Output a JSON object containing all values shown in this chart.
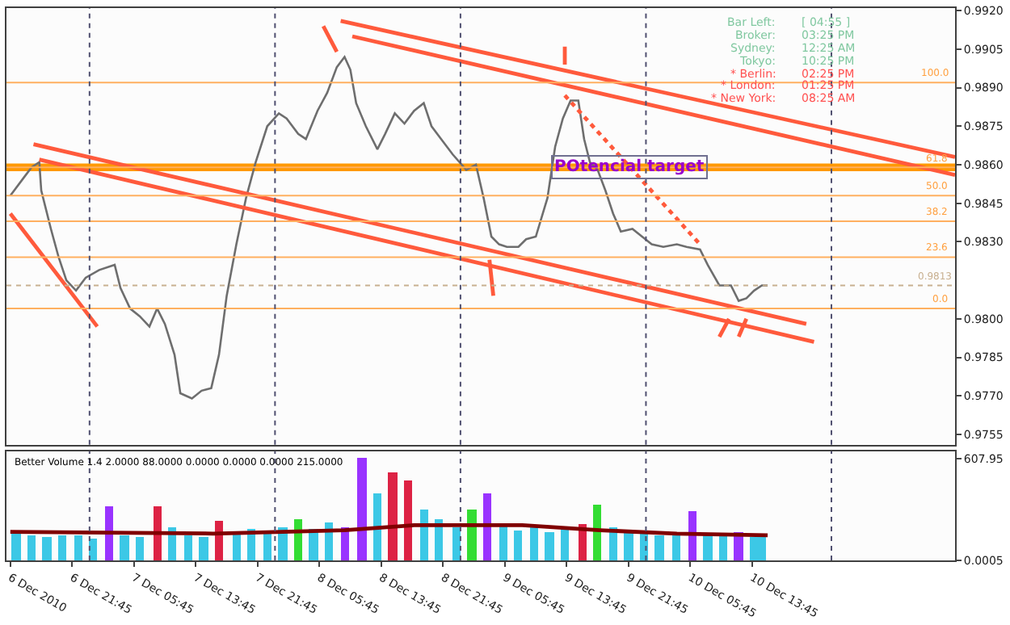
{
  "chart_data": [
    {
      "type": "line",
      "grid": false,
      "tick_labels": "y",
      "xlim": [
        "2010-12-06T13:15",
        "2010-12-11T16:00"
      ],
      "ylim": [
        0.9751,
        0.9921
      ],
      "yticks": [
        {
          "value": 0.992,
          "label": "0.9920"
        },
        0.9905,
        {
          "value": 0.989,
          "label": "0.9890"
        },
        0.9875,
        {
          "value": 0.986,
          "label": "0.9860"
        },
        0.9845,
        {
          "value": 0.983,
          "label": "0.9830"
        },
        {
          "value": 0.98,
          "label": "0.9800"
        },
        0.9785,
        {
          "value": 0.977,
          "label": "0.9770"
        },
        0.9755
      ],
      "series": [
        {
          "color": "#6e6e6e",
          "x": [
            "2010-12-06T13:45",
            "2010-12-06T15:30",
            "2010-12-06T16:30",
            "2010-12-06T17:30",
            "2010-12-06T17:45",
            "2010-12-06T19:00",
            "2010-12-06T20:00",
            "2010-12-06T21:00",
            "2010-12-06T22:15",
            "2010-12-06T23:30",
            "2010-12-07T01:15",
            "2010-12-07T03:15",
            "2010-12-07T04:00",
            "2010-12-07T05:15",
            "2010-12-07T06:30",
            "2010-12-07T07:45",
            "2010-12-07T08:45",
            "2010-12-07T09:45",
            "2010-12-07T11:00",
            "2010-12-07T11:45",
            "2010-12-07T13:15",
            "2010-12-07T14:30",
            "2010-12-07T15:45",
            "2010-12-07T16:45",
            "2010-12-07T17:45",
            "2010-12-07T19:00",
            "2010-12-07T20:15",
            "2010-12-07T21:30",
            "2010-12-07T23:00",
            "2010-12-08T00:30",
            "2010-12-08T01:30",
            "2010-12-08T03:00",
            "2010-12-08T04:00",
            "2010-12-08T05:30",
            "2010-12-08T06:45",
            "2010-12-08T08:00",
            "2010-12-08T09:00",
            "2010-12-08T09:45",
            "2010-12-08T10:30",
            "2010-12-08T11:45",
            "2010-12-08T13:15",
            "2010-12-08T14:15",
            "2010-12-08T15:30",
            "2010-12-08T16:45",
            "2010-12-08T18:00",
            "2010-12-08T19:15",
            "2010-12-08T20:15",
            "2010-12-08T21:30",
            "2010-12-08T23:00",
            "2010-12-09T00:45",
            "2010-12-09T02:00",
            "2010-12-09T03:00",
            "2010-12-09T04:00",
            "2010-12-09T05:00",
            "2010-12-09T06:00",
            "2010-12-09T07:30",
            "2010-12-09T08:30",
            "2010-12-09T09:45",
            "2010-12-09T11:15",
            "2010-12-09T12:15",
            "2010-12-09T13:15",
            "2010-12-09T14:15",
            "2010-12-09T15:15",
            "2010-12-09T16:00",
            "2010-12-09T16:45",
            "2010-12-09T17:45",
            "2010-12-09T18:45",
            "2010-12-09T19:45",
            "2010-12-09T20:45",
            "2010-12-09T22:15",
            "2010-12-09T23:30",
            "2010-12-10T00:45",
            "2010-12-10T02:15",
            "2010-12-10T04:00",
            "2010-12-10T05:15",
            "2010-12-10T07:00",
            "2010-12-10T08:00",
            "2010-12-10T09:30",
            "2010-12-10T11:00",
            "2010-12-10T12:00",
            "2010-12-10T13:00",
            "2010-12-10T14:00",
            "2010-12-10T15:00",
            "2010-12-10T15:45"
          ],
          "values": [
            0.9848,
            0.9855,
            0.9859,
            0.9861,
            0.985,
            0.9835,
            0.9824,
            0.9815,
            0.9811,
            0.9816,
            0.9819,
            0.9821,
            0.9812,
            0.9804,
            0.9801,
            0.9797,
            0.9804,
            0.9798,
            0.9786,
            0.9771,
            0.9769,
            0.9772,
            0.9773,
            0.9786,
            0.9809,
            0.9829,
            0.9847,
            0.9861,
            0.9875,
            0.988,
            0.9878,
            0.9872,
            0.987,
            0.9881,
            0.9888,
            0.9898,
            0.9902,
            0.9897,
            0.9884,
            0.9875,
            0.9866,
            0.9872,
            0.988,
            0.9876,
            0.9881,
            0.9884,
            0.9875,
            0.987,
            0.9864,
            0.9858,
            0.986,
            0.9847,
            0.9832,
            0.9829,
            0.9828,
            0.9828,
            0.9831,
            0.9832,
            0.9847,
            0.9867,
            0.9878,
            0.9885,
            0.9885,
            0.987,
            0.9861,
            0.9858,
            0.985,
            0.9841,
            0.9834,
            0.9835,
            0.9832,
            0.9829,
            0.9828,
            0.9829,
            0.9828,
            0.9827,
            0.9821,
            0.9813,
            0.9813,
            0.9807,
            0.9808,
            0.9811,
            0.9813,
            0.9813
          ]
        },
        {
          "color": "#ff5a3c",
          "x": [
            "2010-12-08T08:30",
            "2010-12-11T16:00"
          ],
          "values": [
            0.9916,
            0.9863
          ]
        },
        {
          "color": "#ff5a3c",
          "x": [
            "2010-12-08T10:00",
            "2010-12-11T16:00"
          ],
          "values": [
            0.991,
            0.9856
          ]
        },
        {
          "color": "#ff5a3c",
          "x": [
            "2010-12-06T16:45",
            "2010-12-10T20:45"
          ],
          "values": [
            0.9868,
            0.9798
          ]
        },
        {
          "color": "#ff5a3c",
          "x": [
            "2010-12-06T17:30",
            "2010-12-10T21:45"
          ],
          "values": [
            0.9862,
            0.9791
          ]
        },
        {
          "color": "#ff5a3c",
          "x": [
            "2010-12-06T13:45",
            "2010-12-07T01:00"
          ],
          "values": [
            0.9841,
            0.9797
          ]
        },
        {
          "color": "#ff5a3c",
          "line_style": "dotted",
          "x": [
            "2010-12-09T13:30",
            "2010-12-10T07:00"
          ],
          "values": [
            0.9887,
            0.9829
          ]
        },
        {
          "color": "#ff5a3c",
          "x": [
            "2010-12-08T06:15",
            "2010-12-08T08:00"
          ],
          "values": [
            0.9914,
            0.9904
          ]
        },
        {
          "color": "#ff5a3c",
          "x": [
            "2010-12-09T13:30",
            "2010-12-09T13:30"
          ],
          "values": [
            0.9906,
            0.9899
          ]
        },
        {
          "color": "#ff5a3c",
          "x": [
            "2010-12-09T03:45",
            "2010-12-09T04:15"
          ],
          "values": [
            0.9823,
            0.9809
          ]
        },
        {
          "color": "#ff5a3c",
          "x": [
            "2010-12-10T09:30",
            "2010-12-10T10:45"
          ],
          "values": [
            0.9793,
            0.98
          ]
        },
        {
          "color": "#ff5a3c",
          "x": [
            "2010-12-10T12:00",
            "2010-12-10T13:00"
          ],
          "values": [
            0.9793,
            0.98
          ]
        }
      ],
      "ref_lines": [
        {
          "axis": "y",
          "value": 0.9892,
          "color": "#ffb060"
        },
        {
          "axis": "y",
          "value": 0.9859,
          "color": "#ffb060"
        },
        {
          "axis": "y",
          "value": 0.9848,
          "color": "#ffb060"
        },
        {
          "axis": "y",
          "value": 0.9838,
          "color": "#ffb060"
        },
        {
          "axis": "y",
          "value": 0.9824,
          "color": "#ffb060"
        },
        {
          "axis": "y",
          "value": 0.9804,
          "color": "#ffb060"
        },
        {
          "axis": "y",
          "value": 0.9813,
          "label": "0.9813",
          "color": "#c8b090",
          "line_style": "dotted"
        },
        {
          "axis": "x",
          "value": "2010-12-07",
          "color": "#505070",
          "line_style": "dotted"
        },
        {
          "axis": "x",
          "value": "2010-12-08",
          "color": "#505070",
          "line_style": "dotted"
        },
        {
          "axis": "x",
          "value": "2010-12-09",
          "color": "#505070",
          "line_style": "dotted"
        },
        {
          "axis": "x",
          "value": "2010-12-10",
          "color": "#505070",
          "line_style": "dotted"
        },
        {
          "axis": "x",
          "value": "2010-12-11",
          "color": "#505070",
          "line_style": "dotted"
        }
      ],
      "bands": [
        {
          "axis": "y",
          "from": 0.98575,
          "to": 0.98605,
          "label": "POtencial target",
          "color": "#ff9900"
        }
      ],
      "annotations": [
        "Bar Left:",
        "[ 04:55 ]",
        "Broker:",
        "03:25 PM",
        "Sydney:",
        "12:25 AM",
        "Tokyo:",
        "10:25 PM",
        "* Berlin:",
        "02:25 PM",
        "* London:",
        "01:25 PM",
        "* New York:",
        "08:25 AM",
        {
          "text": "100.0",
          "x": "2010-12-11T15:30",
          "y": 0.9892
        },
        {
          "text": "61.8",
          "x": "2010-12-11T15:30",
          "y": 0.9859
        },
        {
          "text": "50.0",
          "x": "2010-12-11T15:30",
          "y": 0.9848
        },
        {
          "text": "38.2",
          "x": "2010-12-11T15:30",
          "y": 0.9838
        },
        {
          "text": "23.6",
          "x": "2010-12-11T15:30",
          "y": 0.9824
        },
        {
          "text": "0.0",
          "x": "2010-12-11T15:30",
          "y": 0.9804
        }
      ]
    },
    {
      "type": "bar",
      "title": "Better Volume 1.4 2.0000 88.0000 0.0000 0.0000 0.0000 215.0000",
      "grid": false,
      "xlim": [
        "2010-12-06T13:15",
        "2010-12-11T16:00"
      ],
      "ylim": [
        0,
        651
      ],
      "yticks": [
        0.0005,
        607.95
      ],
      "xticks": [
        {
          "value": "2010-12-06T13:45",
          "label": "6 Dec 2010"
        },
        {
          "value": "2010-12-06T21:45",
          "label": "6 Dec 21:45"
        },
        {
          "value": "2010-12-07T05:45",
          "label": "7 Dec 05:45"
        },
        {
          "value": "2010-12-07T13:45",
          "label": "7 Dec 13:45"
        },
        {
          "value": "2010-12-07T21:45",
          "label": "7 Dec 21:45"
        },
        {
          "value": "2010-12-08T05:45",
          "label": "8 Dec 05:45"
        },
        {
          "value": "2010-12-08T13:45",
          "label": "8 Dec 13:45"
        },
        {
          "value": "2010-12-08T21:45",
          "label": "8 Dec 21:45"
        },
        {
          "value": "2010-12-09T05:45",
          "label": "9 Dec 05:45"
        },
        {
          "value": "2010-12-09T13:45",
          "label": "9 Dec 13:45"
        },
        {
          "value": "2010-12-09T21:45",
          "label": "9 Dec 21:45"
        },
        {
          "value": "2010-12-10T05:45",
          "label": "10 Dec 05:45"
        },
        {
          "value": "2010-12-10T13:45",
          "label": "10 Dec 13:45"
        }
      ],
      "series": [
        {
          "x": [
            "2010-12-06T14:30",
            "2010-12-06T16:30",
            "2010-12-06T18:30",
            "2010-12-06T20:30",
            "2010-12-06T22:30",
            "2010-12-07T00:30",
            "2010-12-07T02:30",
            "2010-12-07T04:30",
            "2010-12-07T06:30",
            "2010-12-07T08:45",
            "2010-12-07T10:45",
            "2010-12-07T12:45",
            "2010-12-07T14:45",
            "2010-12-07T16:45",
            "2010-12-07T19:00",
            "2010-12-07T21:00",
            "2010-12-07T23:00",
            "2010-12-08T01:00",
            "2010-12-08T03:00",
            "2010-12-08T05:00",
            "2010-12-08T07:00",
            "2010-12-08T09:00",
            "2010-12-08T11:15",
            "2010-12-08T13:15",
            "2010-12-08T15:15",
            "2010-12-08T17:15",
            "2010-12-08T19:15",
            "2010-12-08T21:15",
            "2010-12-08T23:30",
            "2010-12-09T01:30",
            "2010-12-09T03:30",
            "2010-12-09T05:30",
            "2010-12-09T07:30",
            "2010-12-09T09:30",
            "2010-12-09T11:30",
            "2010-12-09T13:30",
            "2010-12-09T15:45",
            "2010-12-09T17:45",
            "2010-12-09T19:45",
            "2010-12-09T21:45",
            "2010-12-09T23:45",
            "2010-12-10T01:45",
            "2010-12-10T04:00",
            "2010-12-10T06:00",
            "2010-12-10T08:00",
            "2010-12-10T10:00",
            "2010-12-10T12:00",
            "2010-12-10T14:00",
            "2010-12-10T15:00"
          ],
          "values": [
            160,
            150,
            140,
            150,
            150,
            130,
            320,
            150,
            140,
            320,
            200,
            150,
            140,
            240,
            170,
            190,
            180,
            200,
            250,
            190,
            230,
            200,
            610,
            400,
            530,
            480,
            300,
            250,
            200,
            300,
            400,
            220,
            180,
            200,
            170,
            190,
            220,
            330,
            200,
            170,
            160,
            150,
            170,
            290,
            160,
            150,
            170,
            140,
            150
          ],
          "colors": [
            "#3cc8e6",
            "#3cc8e6",
            "#3cc8e6",
            "#3cc8e6",
            "#3cc8e6",
            "#3cc8e6",
            "#9933ff",
            "#3cc8e6",
            "#3cc8e6",
            "#dd2244",
            "#3cc8e6",
            "#3cc8e6",
            "#3cc8e6",
            "#dd2244",
            "#3cc8e6",
            "#3cc8e6",
            "#3cc8e6",
            "#3cc8e6",
            "#33dd33",
            "#3cc8e6",
            "#3cc8e6",
            "#9933ff",
            "#9933ff",
            "#3cc8e6",
            "#dd2244",
            "#dd2244",
            "#3cc8e6",
            "#3cc8e6",
            "#3cc8e6",
            "#33dd33",
            "#9933ff",
            "#3cc8e6",
            "#3cc8e6",
            "#3cc8e6",
            "#3cc8e6",
            "#3cc8e6",
            "#dd2244",
            "#33dd33",
            "#3cc8e6",
            "#3cc8e6",
            "#3cc8e6",
            "#3cc8e6",
            "#3cc8e6",
            "#9933ff",
            "#3cc8e6",
            "#3cc8e6",
            "#9933ff",
            "#3cc8e6",
            "#3cc8e6"
          ]
        },
        {
          "type": "line",
          "color": "#800000",
          "x": [
            "2010-12-06T13:45",
            "2010-12-07T16:00",
            "2010-12-08T09:00",
            "2010-12-08T18:00",
            "2010-12-09T08:00",
            "2010-12-09T18:00",
            "2010-12-10T04:00",
            "2010-12-10T15:45"
          ],
          "values": [
            170,
            160,
            180,
            210,
            210,
            180,
            160,
            150
          ]
        }
      ],
      "ref_lines": [
        {
          "axis": "x",
          "value": "2010-12-07",
          "color": "#505070",
          "line_style": "dotted"
        },
        {
          "axis": "x",
          "value": "2010-12-08",
          "color": "#505070",
          "line_style": "dotted"
        },
        {
          "axis": "x",
          "value": "2010-12-09",
          "color": "#505070",
          "line_style": "dotted"
        },
        {
          "axis": "x",
          "value": "2010-12-10",
          "color": "#505070",
          "line_style": "dotted"
        },
        {
          "axis": "x",
          "value": "2010-12-11",
          "color": "#505070",
          "line_style": "dotted"
        }
      ]
    }
  ]
}
